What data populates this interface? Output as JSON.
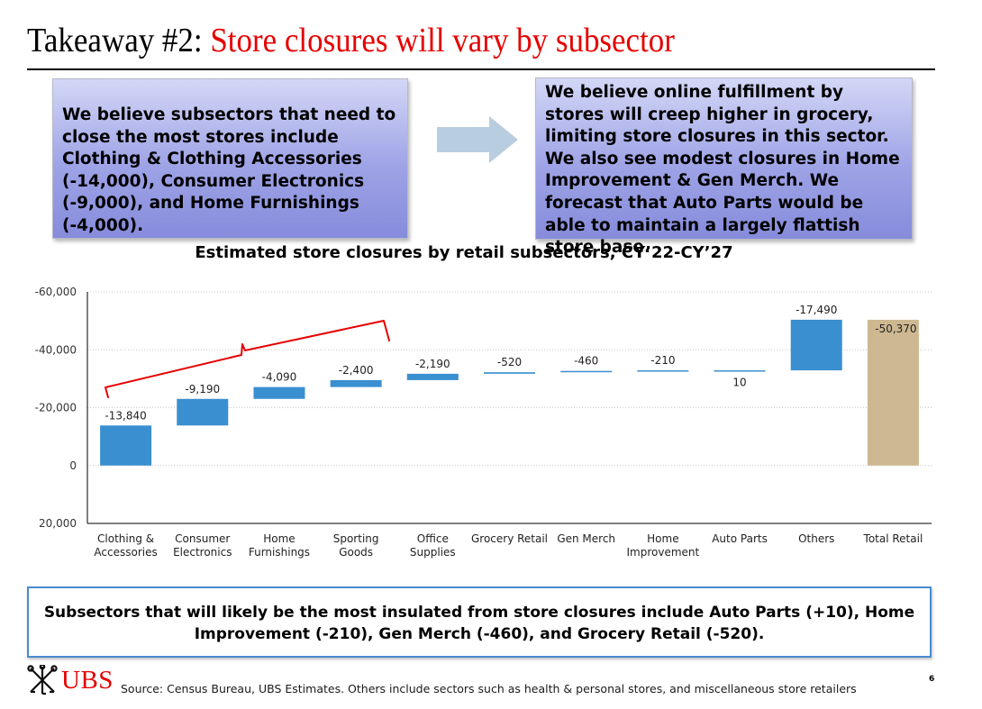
{
  "header": {
    "title_lead": "Takeaway #2:",
    "title_accent": "Store closures will vary by subsector"
  },
  "callouts": {
    "left": "We believe subsectors that need to close the most stores include Clothing & Clothing Accessories (-14,000), Consumer Electronics (-9,000), and Home Furnishings (-4,000).",
    "right": "We believe online fulfillment by stores will creep higher in grocery, limiting store closures in this sector. We also see modest closures in Home Improvement & Gen Merch. We forecast that Auto Parts would be able to maintain a largely flattish store base."
  },
  "chart_title": "Estimated store closures by retail subsectors, CY’22-CY’27",
  "chart_data": {
    "type": "bar",
    "subtype": "waterfall",
    "title": "Estimated store closures by retail subsectors, CY’22-CY’27",
    "categories": [
      [
        "Clothing &",
        "Accessories"
      ],
      [
        "Consumer",
        "Electronics"
      ],
      [
        "Home",
        "Furnishings"
      ],
      [
        "Sporting",
        "Goods"
      ],
      [
        "Office",
        "Supplies"
      ],
      [
        "Grocery Retail"
      ],
      [
        "Gen Merch"
      ],
      [
        "Home",
        "Improvement"
      ],
      [
        "Auto Parts"
      ],
      [
        "Others"
      ],
      [
        "Total Retail"
      ]
    ],
    "values": [
      -13840,
      -9190,
      -4090,
      -2400,
      -2190,
      -520,
      -460,
      -210,
      10,
      -17490,
      -50370
    ],
    "data_labels": [
      "-13,840",
      "-9,190",
      "-4,090",
      "-2,400",
      "-2,190",
      "-520",
      "-460",
      "-210",
      "10",
      "-17,490",
      "-50,370"
    ],
    "total_index": 10,
    "yaxis_reversed": true,
    "ylim": [
      20000,
      -60000
    ],
    "yticks": [
      20000,
      0,
      -20000,
      -40000,
      -60000
    ],
    "ytick_labels": [
      "20,000",
      "0",
      "-20,000",
      "-40,000",
      "-60,000"
    ],
    "grid": true,
    "colors": {
      "bar": "#3a8fd0",
      "total": "#cdb891",
      "bracket": "#e60000"
    },
    "annotation": "red brace grouping the first four subsectors"
  },
  "bottom_note": "Subsectors that will likely be the most insulated from store closures include Auto Parts (+10), Home Improvement (-210), Gen Merch (-460), and Grocery Retail (-520).",
  "footer": {
    "logo_text": "UBS",
    "source": "Source: Census Bureau, UBS Estimates. Others include sectors such as health & personal stores, and miscellaneous store retailers",
    "page_number": "6"
  }
}
